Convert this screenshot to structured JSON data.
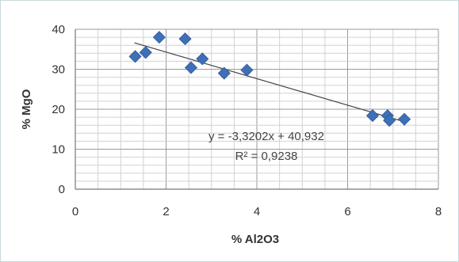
{
  "chart_data": {
    "type": "scatter",
    "title": "",
    "xlabel": "% Al2O3",
    "ylabel": "% MgO",
    "xlim": [
      0,
      8
    ],
    "ylim": [
      0,
      40
    ],
    "x_ticks": [
      "0",
      "2",
      "4",
      "6",
      "8"
    ],
    "y_ticks": [
      "0",
      "10",
      "20",
      "30",
      "40"
    ],
    "grid": true,
    "legend": "none",
    "series": [
      {
        "marker": "diamond",
        "color": "#3f6fb5",
        "points": [
          {
            "x": 1.32,
            "y": 33.2
          },
          {
            "x": 1.55,
            "y": 34.2
          },
          {
            "x": 1.85,
            "y": 38.0
          },
          {
            "x": 2.42,
            "y": 37.6
          },
          {
            "x": 2.55,
            "y": 30.4
          },
          {
            "x": 2.8,
            "y": 32.6
          },
          {
            "x": 3.28,
            "y": 29.0
          },
          {
            "x": 3.78,
            "y": 29.8
          },
          {
            "x": 6.55,
            "y": 18.4
          },
          {
            "x": 6.88,
            "y": 18.4
          },
          {
            "x": 6.92,
            "y": 17.2
          },
          {
            "x": 7.25,
            "y": 17.5
          }
        ]
      }
    ],
    "trendline": {
      "slope": -3.3202,
      "intercept": 40.932,
      "x_range": [
        1.3,
        7.25
      ],
      "color": "#444444",
      "equation": "y = -3,3202x + 40,932",
      "r_squared": "R² = 0,9238"
    }
  }
}
